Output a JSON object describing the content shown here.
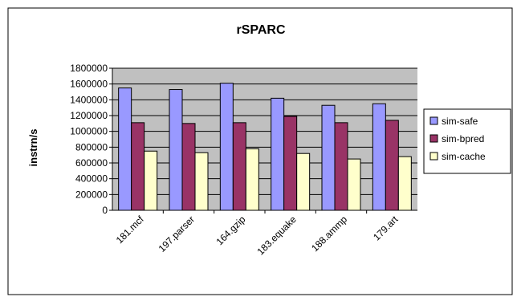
{
  "chart_data": {
    "type": "bar",
    "title": "rSPARC",
    "xlabel": "",
    "ylabel": "instrn/s",
    "ylim": [
      0,
      1800000
    ],
    "yticks": [
      "0",
      "200000",
      "400000",
      "600000",
      "800000",
      "1000000",
      "1200000",
      "1400000",
      "1600000",
      "1800000"
    ],
    "categories": [
      "181.mcf",
      "197.parser",
      "164.gzip",
      "183.equake",
      "188.ammp",
      "179.art"
    ],
    "series": [
      {
        "name": "sim-safe",
        "color": "#9999ff",
        "values": [
          1550000,
          1530000,
          1610000,
          1420000,
          1330000,
          1350000
        ]
      },
      {
        "name": "sim-bpred",
        "color": "#993366",
        "values": [
          1110000,
          1100000,
          1110000,
          1190000,
          1110000,
          1140000
        ]
      },
      {
        "name": "sim-cache",
        "color": "#ffffcc",
        "values": [
          750000,
          730000,
          780000,
          720000,
          650000,
          680000
        ]
      }
    ],
    "grid": true,
    "legend": "right",
    "plot_background": "#c0c0c0"
  }
}
